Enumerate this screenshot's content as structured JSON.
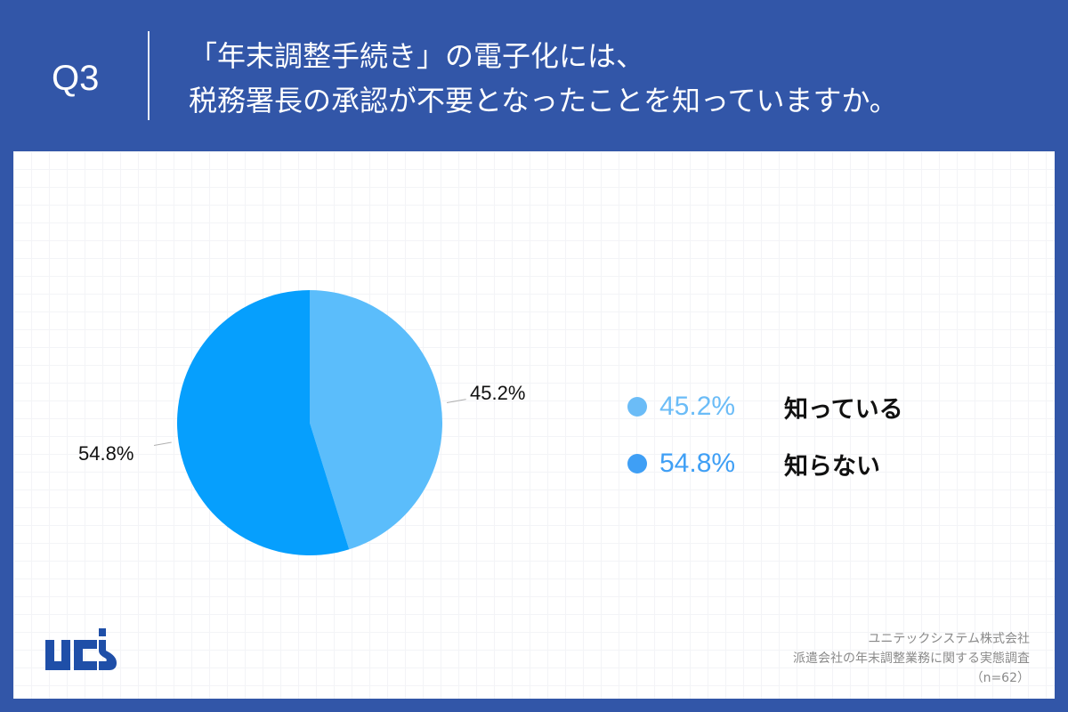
{
  "header": {
    "question_number": "Q3",
    "title_line1": "「年末調整手続き」の電子化には、",
    "title_line2": "税務署長の承認が不要となったことを知っていますか。"
  },
  "chart_data": {
    "type": "pie",
    "title": "「年末調整手続き」の電子化には、税務署長の承認が不要となったことを知っていますか。",
    "categories": [
      "知っている",
      "知らない"
    ],
    "values": [
      45.2,
      54.8
    ],
    "unit": "%",
    "colors": [
      "#5bbdfb",
      "#069ffd"
    ],
    "data_labels": [
      "45.2%",
      "54.8%"
    ],
    "start_angle_deg": 0,
    "direction": "clockwise",
    "legend_position": "right",
    "n": 62
  },
  "pie_labels": {
    "slice1": "45.2%",
    "slice2": "54.8%"
  },
  "legend": {
    "items": [
      {
        "pct": "45.2%",
        "label": "知っている",
        "dot_color": "#6bbcf7",
        "pct_color": "#6bbcf7"
      },
      {
        "pct": "54.8%",
        "label": "知らない",
        "dot_color": "#3f9ff5",
        "pct_color": "#3f9ff5"
      }
    ]
  },
  "footer": {
    "logo_text": "ucs",
    "source_line1": "ユニテックシステム株式会社",
    "source_line2": "派遣会社の年末調整業務に関する実態調査",
    "source_line3": "（n=62）"
  },
  "colors": {
    "frame": "#3256a8",
    "logo": "#1f4fa8"
  }
}
